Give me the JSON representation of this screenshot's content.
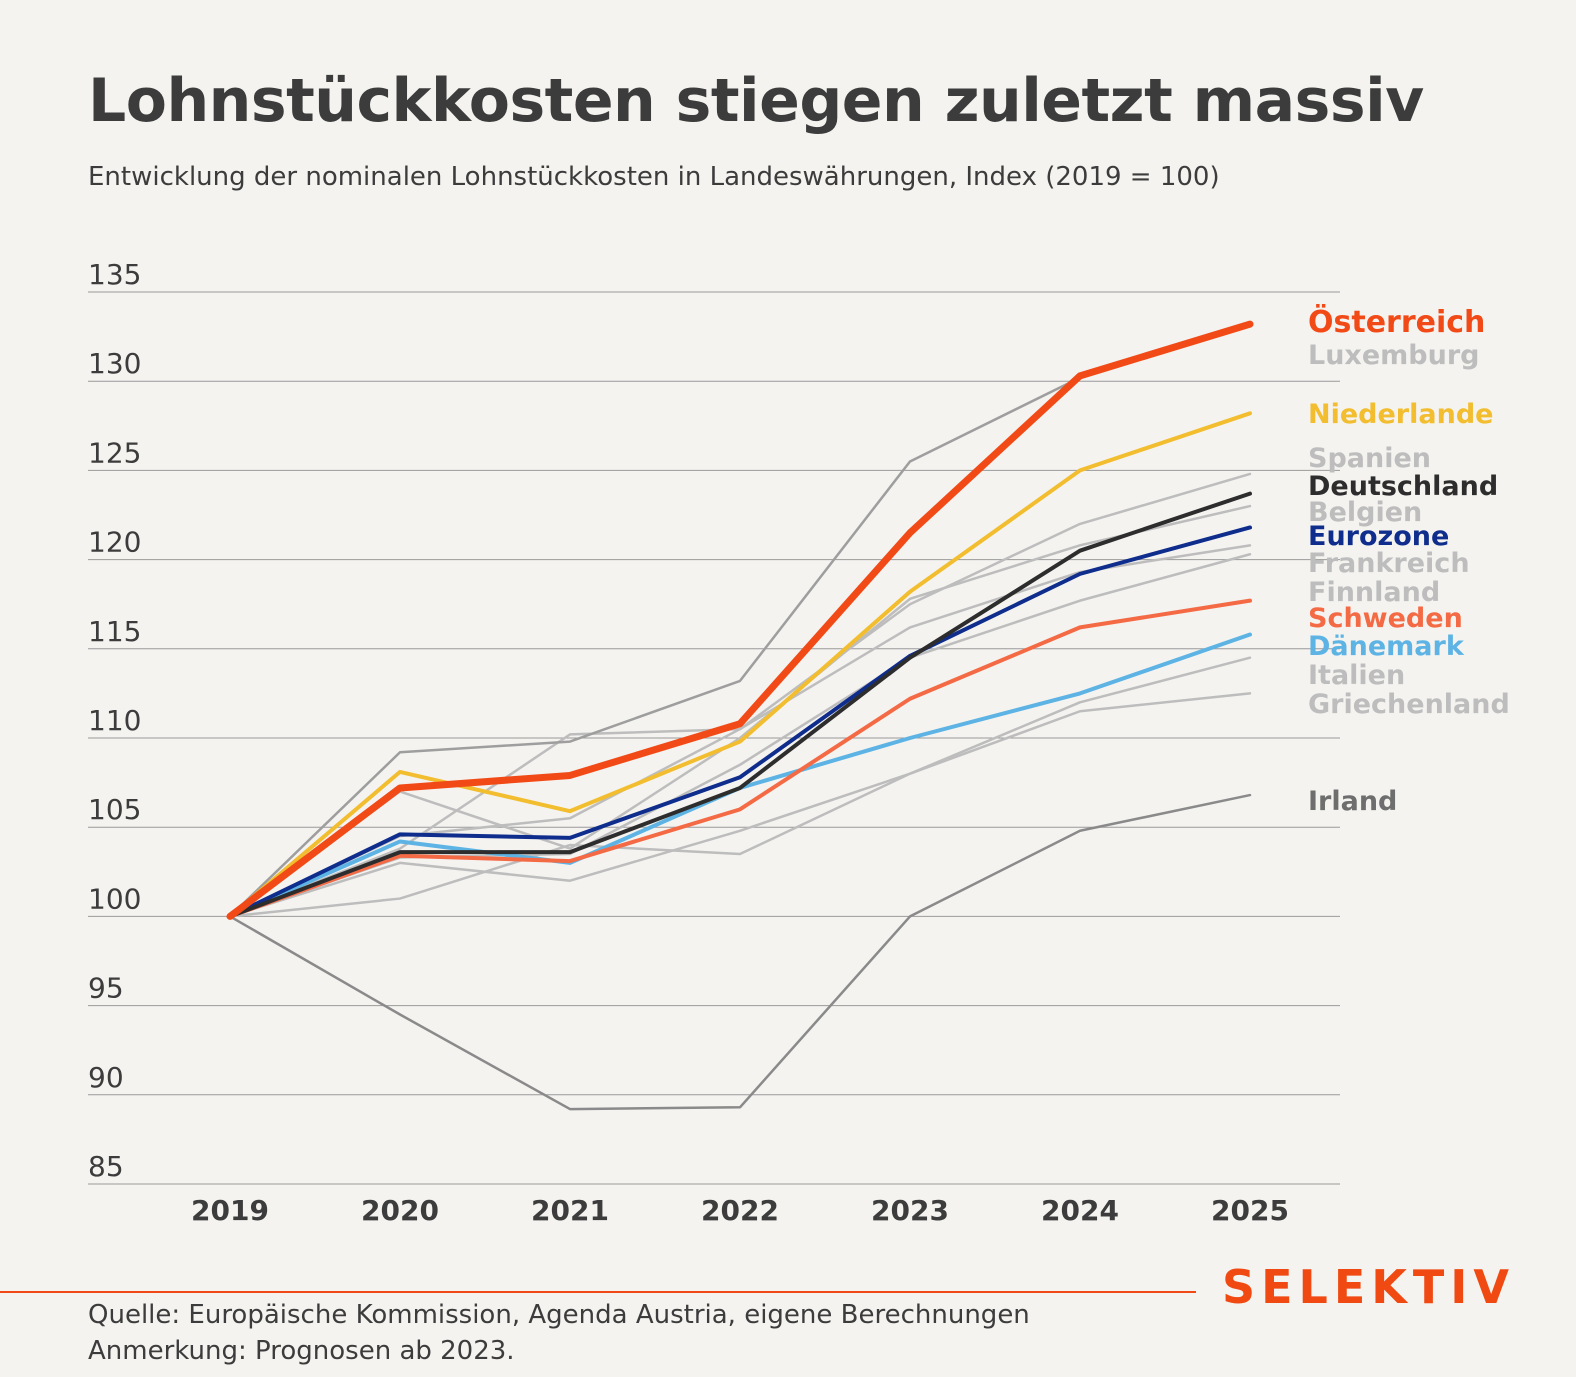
{
  "title": "Lohnstückkosten stiegen zuletzt massiv",
  "subtitle": "Entwicklung der nominalen Lohnstückkosten in Landeswährungen, Index (2019 = 100)",
  "footer": {
    "source": "Quelle: Europäische Kommission, Agenda Austria, eigene Berechnungen",
    "note": "Anmerkung: Prognosen ab 2023.",
    "logo": "SELEKTIV"
  },
  "colors": {
    "accent": "#f04a12",
    "grey_series": "#bdbdbd",
    "dark_grey_series": "#8a8a8a"
  },
  "chart_data": {
    "type": "line",
    "x": [
      "2019",
      "2020",
      "2021",
      "2022",
      "2023",
      "2024",
      "2025"
    ],
    "ylim": [
      85,
      135
    ],
    "yticks": [
      135,
      130,
      125,
      120,
      115,
      110,
      105,
      100,
      95,
      90,
      85
    ],
    "grid": true,
    "legend": "labels at line ends, right",
    "series": [
      {
        "name": "Irland",
        "color": "#8a8a8a",
        "values": [
          100,
          94.5,
          89.2,
          89.3,
          100,
          104.8,
          106.8
        ]
      },
      {
        "name": "Griechenland",
        "color": "#bdbdbd",
        "values": [
          100,
          101,
          104,
          103.5,
          108,
          111.5,
          112.5
        ]
      },
      {
        "name": "Italien",
        "color": "#bdbdbd",
        "values": [
          100,
          103,
          102,
          104.8,
          108,
          112,
          114.5
        ]
      },
      {
        "name": "Finnland",
        "color": "#bdbdbd",
        "values": [
          100,
          103.3,
          103.5,
          108.5,
          114.5,
          117.7,
          120.3
        ]
      },
      {
        "name": "Frankreich",
        "color": "#bdbdbd",
        "values": [
          100,
          104.5,
          105.5,
          110.5,
          116.2,
          119.3,
          120.8
        ]
      },
      {
        "name": "Belgien",
        "color": "#bdbdbd",
        "values": [
          100,
          107,
          103.8,
          110,
          117.8,
          120.8,
          123
        ]
      },
      {
        "name": "Spanien",
        "color": "#bdbdbd",
        "values": [
          100,
          103.8,
          110.2,
          110.5,
          117.5,
          122,
          124.8
        ]
      },
      {
        "name": "Luxemburg",
        "color": "#9e9e9e",
        "values": [
          100,
          109.2,
          109.8,
          113.2,
          125.5,
          130.2,
          null
        ]
      },
      {
        "name": "Dänemark",
        "color": "#5db3e4",
        "values": [
          100,
          104.2,
          103,
          107.2,
          110,
          112.5,
          115.8
        ]
      },
      {
        "name": "Schweden",
        "color": "#f46a45",
        "values": [
          100,
          103.4,
          103.1,
          106,
          112.2,
          116.2,
          117.7
        ]
      },
      {
        "name": "Eurozone",
        "color": "#0f2d8c",
        "values": [
          100,
          104.6,
          104.4,
          107.8,
          114.6,
          119.2,
          121.8
        ]
      },
      {
        "name": "Deutschland",
        "color": "#2d2d2d",
        "values": [
          100,
          103.6,
          103.6,
          107.2,
          114.5,
          120.5,
          123.7
        ]
      },
      {
        "name": "Niederlande",
        "color": "#f2bd2e",
        "values": [
          100,
          108.1,
          105.9,
          109.8,
          118.2,
          125,
          128.2
        ]
      },
      {
        "name": "Österreich",
        "color": "#f24a16",
        "values": [
          100,
          107.2,
          107.9,
          110.8,
          121.5,
          130.3,
          133.2
        ]
      }
    ]
  }
}
